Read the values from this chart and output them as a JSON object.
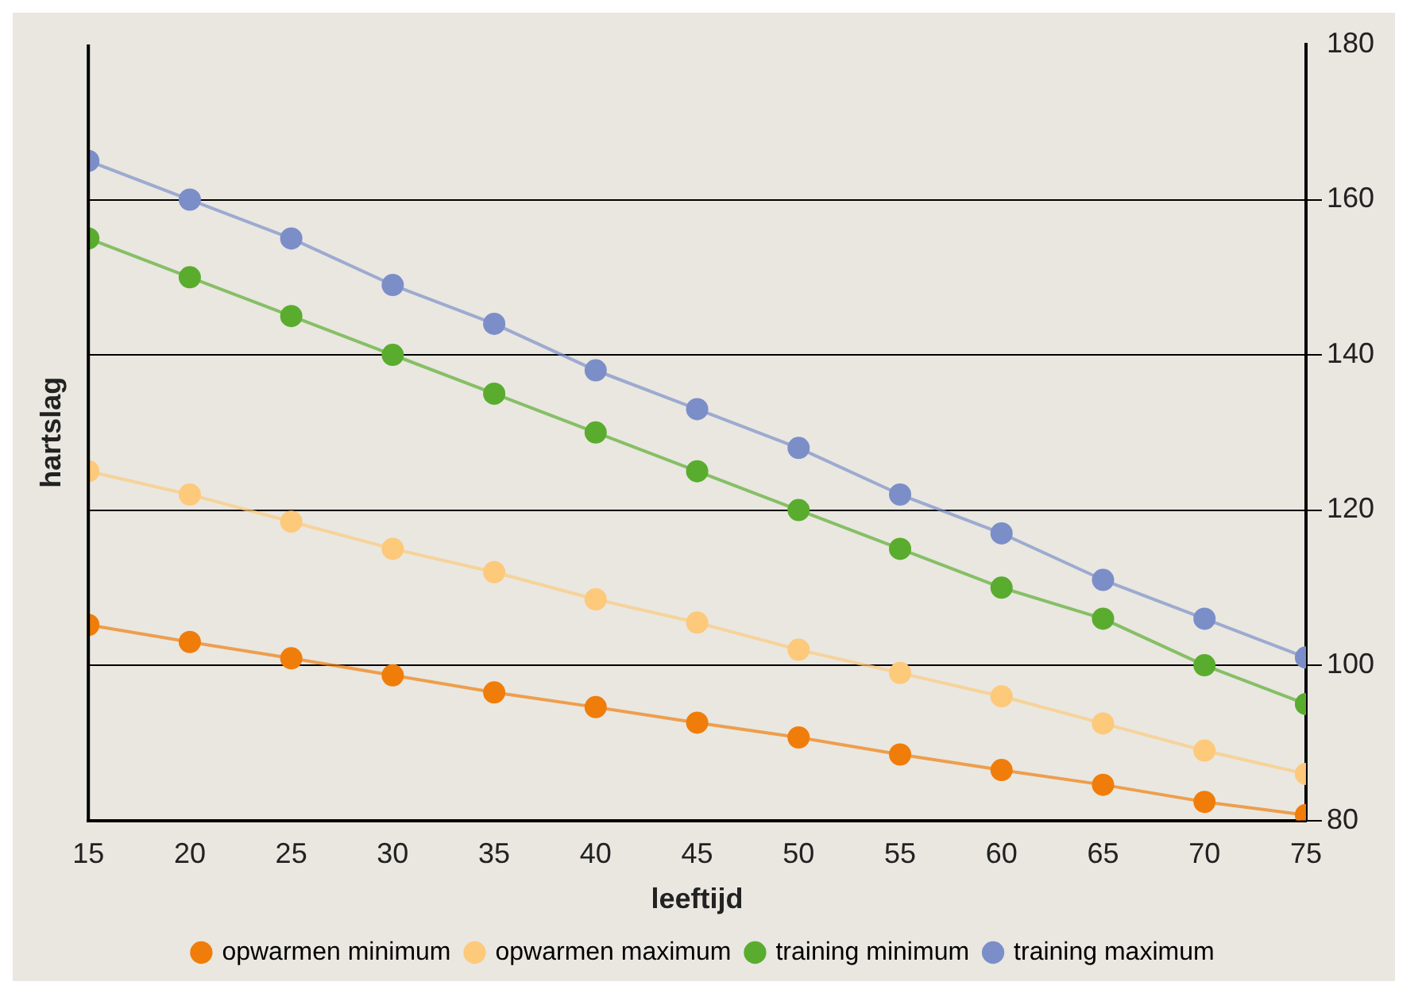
{
  "chart_data": {
    "type": "line",
    "xlabel": "leeftijd",
    "ylabel": "hartslag",
    "x": [
      15,
      20,
      25,
      30,
      35,
      40,
      45,
      50,
      55,
      60,
      65,
      70,
      75
    ],
    "xlim": [
      15,
      75
    ],
    "xticks": [
      15,
      20,
      25,
      30,
      35,
      40,
      45,
      50,
      55,
      60,
      65,
      70,
      75
    ],
    "ylim": [
      80,
      180
    ],
    "yticks": [
      80,
      100,
      120,
      140,
      160,
      180
    ],
    "grid": "y",
    "legend": "bottom",
    "marker": "circle",
    "line_style": "solid",
    "series": [
      {
        "name": "opwarmen minimum",
        "color": "#f07d0a",
        "values": [
          105.2,
          103,
          100.9,
          98.7,
          96.5,
          94.6,
          92.6,
          90.7,
          88.5,
          86.5,
          84.6,
          82.4,
          80.7
        ]
      },
      {
        "name": "opwarmen maximum",
        "color": "#fdc97a",
        "values": [
          125,
          122,
          118.5,
          115,
          112,
          108.5,
          105.5,
          102,
          99,
          96,
          92.5,
          89,
          86
        ]
      },
      {
        "name": "training minimum",
        "color": "#5aac2e",
        "values": [
          155,
          150,
          145,
          140,
          135,
          130,
          125,
          120,
          115,
          110,
          106,
          100,
          95
        ]
      },
      {
        "name": "training maximum",
        "color": "#7b8ec8",
        "values": [
          165,
          160,
          155,
          149,
          144,
          138,
          133,
          128,
          122,
          117,
          111,
          106,
          101
        ]
      }
    ]
  }
}
